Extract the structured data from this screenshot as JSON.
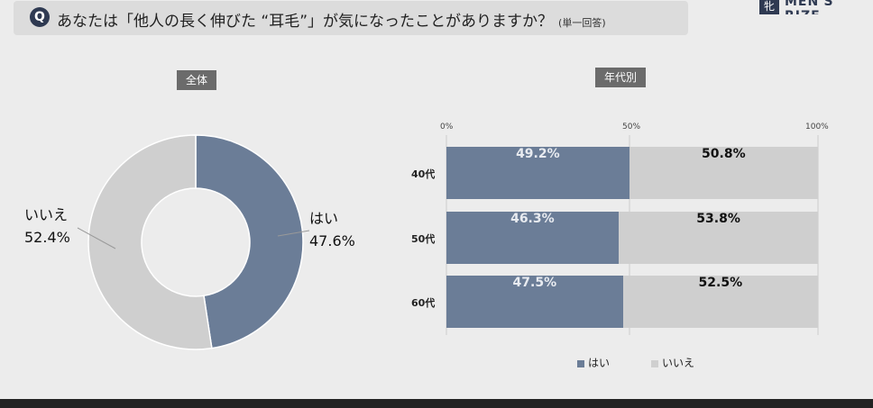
{
  "question": {
    "badge": "Q",
    "text": "あなたは「他人の長く伸びた “耳毛”」が気になったことがありますか？",
    "note": "(単一回答)"
  },
  "brand": {
    "mark": "牝",
    "name": "MEN'S RIZE"
  },
  "colors": {
    "yes": "#6b7d97",
    "no": "#cfcfcf"
  },
  "chart_data": [
    {
      "type": "pie",
      "title": "全体",
      "categories": [
        "はい",
        "いいえ"
      ],
      "values": [
        47.6,
        52.4
      ],
      "labels": [
        "47.6%",
        "52.4%"
      ],
      "donut": true
    },
    {
      "type": "bar",
      "orientation": "horizontal",
      "stacked": true,
      "title": "年代別",
      "categories": [
        "40代",
        "50代",
        "60代"
      ],
      "x_ticks": [
        "0%",
        "50%",
        "100%"
      ],
      "xlim": [
        0,
        100
      ],
      "series": [
        {
          "name": "はい",
          "values": [
            49.2,
            46.3,
            47.5
          ],
          "labels": [
            "49.2%",
            "46.3%",
            "47.5%"
          ]
        },
        {
          "name": "いいえ",
          "values": [
            50.8,
            53.8,
            52.5
          ],
          "labels": [
            "50.8%",
            "53.8%",
            "52.5%"
          ]
        }
      ],
      "legend": "bottom"
    }
  ]
}
